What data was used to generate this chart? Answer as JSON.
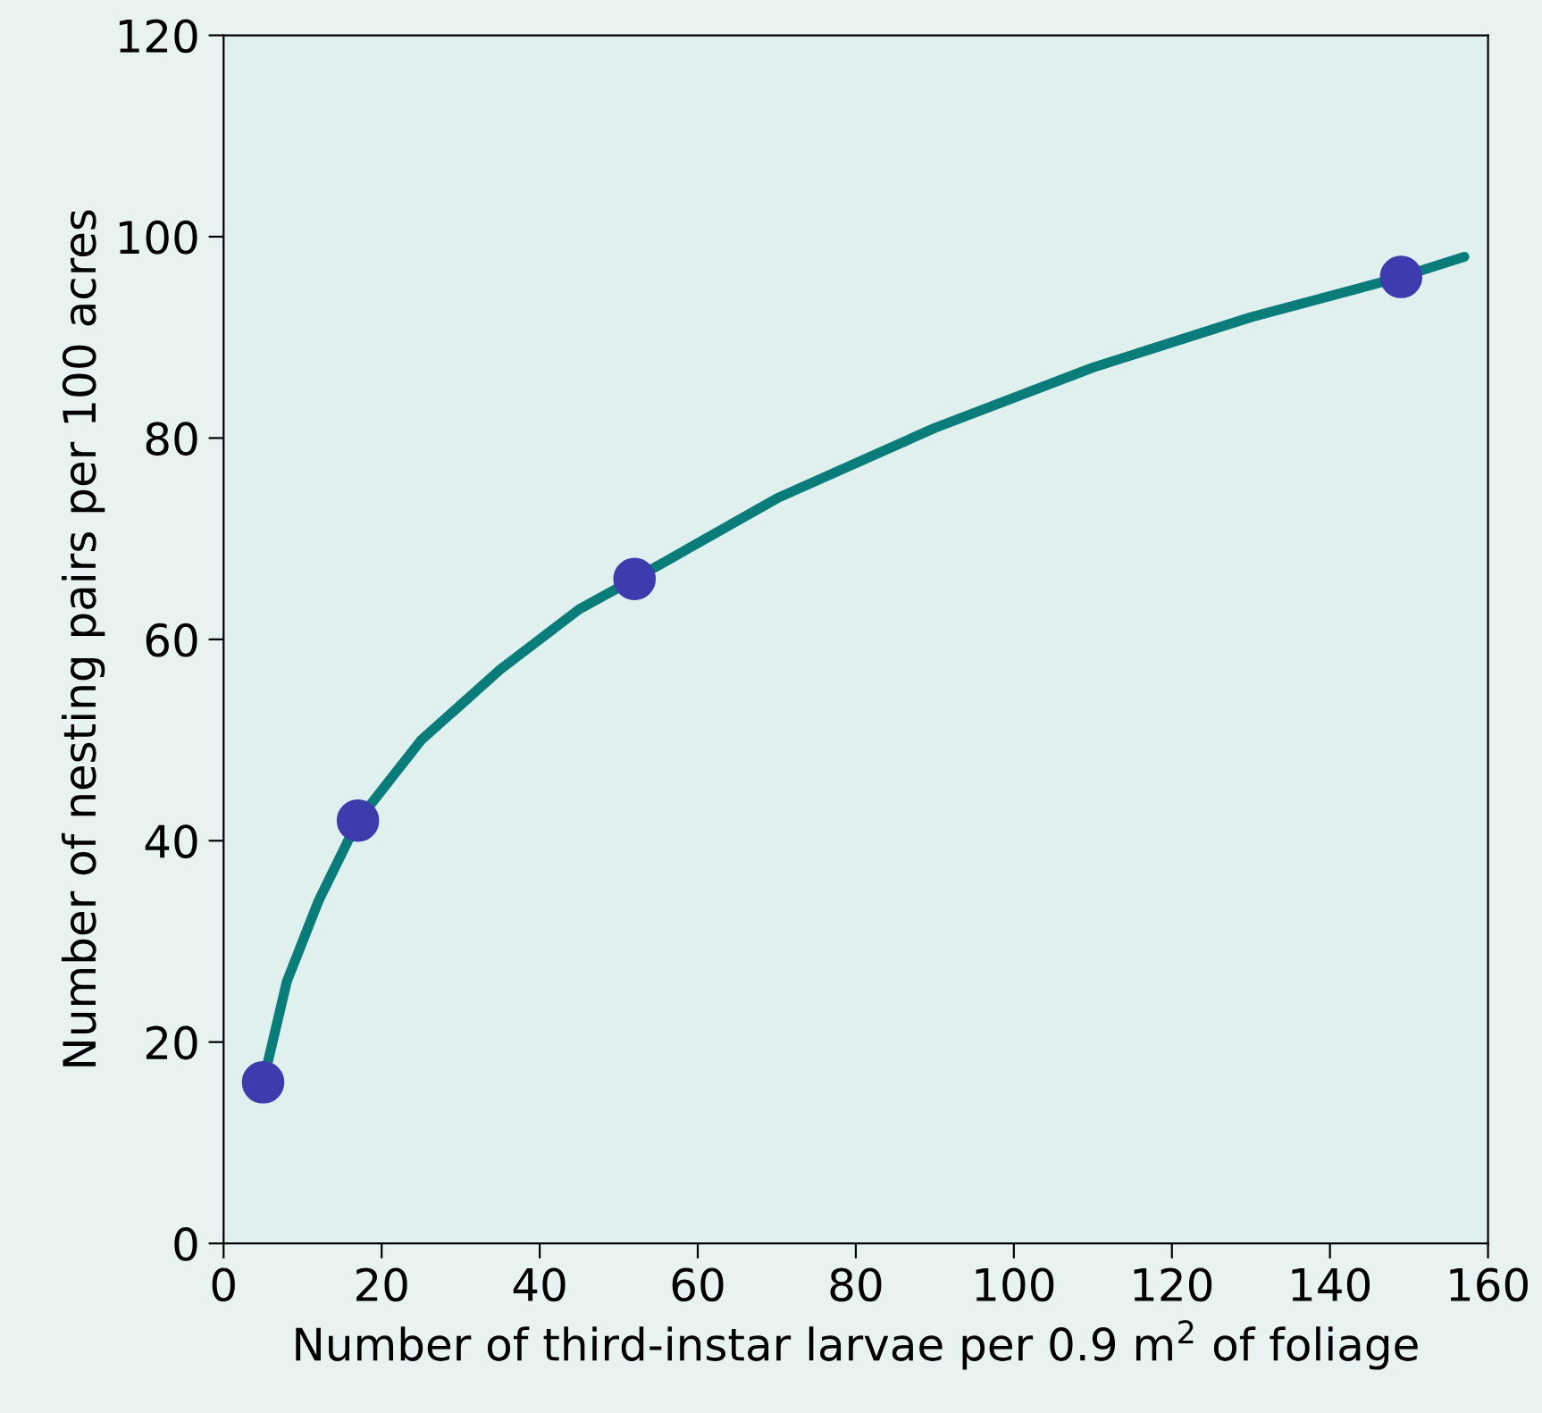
{
  "chart_data": {
    "type": "scatter",
    "xlabel": "Number of third-instar larvae per 0.9 m$^{2}$ of foliage",
    "ylabel": "Number of nesting pairs per 100 acres",
    "xlim": [
      0,
      160
    ],
    "xticks": [
      0,
      20,
      40,
      60,
      80,
      100,
      120,
      140,
      160
    ],
    "ylim": [
      0,
      120
    ],
    "yticks": [
      0,
      20,
      40,
      60,
      80,
      100,
      120
    ],
    "grid": false,
    "legend": false,
    "series": [
      {
        "type": "line",
        "color": "#0a7c7a",
        "line_style": "solid",
        "marker": "none",
        "x": [
          5,
          8,
          12,
          17,
          25,
          35,
          45,
          52,
          70,
          90,
          110,
          130,
          149,
          157
        ],
        "values": [
          16,
          26,
          34,
          42,
          50,
          57,
          63,
          66,
          74,
          81,
          87,
          92,
          96,
          98
        ]
      },
      {
        "color": "#3c3cae",
        "marker": "circle",
        "x": [
          5,
          17,
          52,
          149
        ],
        "values": [
          16,
          42,
          66,
          96
        ]
      }
    ]
  }
}
